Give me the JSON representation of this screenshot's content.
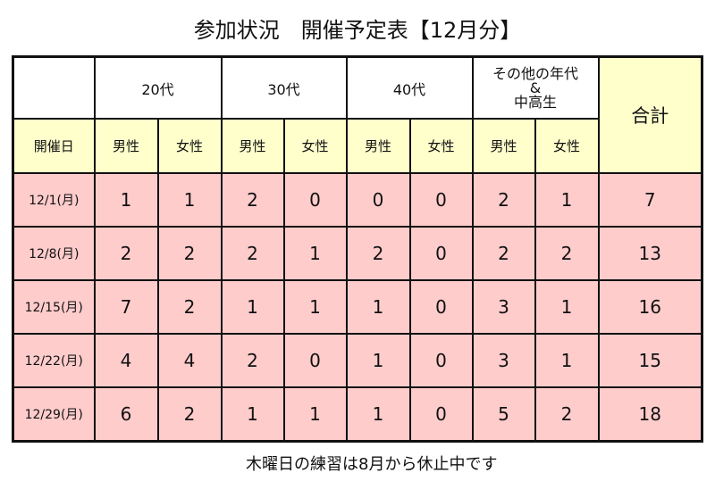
{
  "title": "参加状況　開催予定表【12月分】",
  "header": {
    "groups": [
      "20代",
      "30代",
      "40代"
    ],
    "other_line1": "その他の年代",
    "other_line2": "&",
    "other_line3": "中高生",
    "total": "合計",
    "date_col": "開催日",
    "male": "男性",
    "female": "女性"
  },
  "rows": [
    {
      "date": "12/1(月)",
      "values": [
        "1",
        "1",
        "2",
        "0",
        "0",
        "0",
        "2",
        "1"
      ],
      "total": "7"
    },
    {
      "date": "12/8(月)",
      "values": [
        "2",
        "2",
        "2",
        "1",
        "2",
        "0",
        "2",
        "2"
      ],
      "total": "13"
    },
    {
      "date": "12/15(月)",
      "values": [
        "7",
        "2",
        "1",
        "1",
        "1",
        "0",
        "3",
        "1"
      ],
      "total": "16"
    },
    {
      "date": "12/22(月)",
      "values": [
        "4",
        "4",
        "2",
        "0",
        "1",
        "0",
        "3",
        "1"
      ],
      "total": "15"
    },
    {
      "date": "12/29(月)",
      "values": [
        "6",
        "2",
        "1",
        "1",
        "1",
        "0",
        "5",
        "2"
      ],
      "total": "18"
    }
  ],
  "footer": "木曜日の練習は8月から休止中です",
  "colors": {
    "header_white": "#ffffff",
    "header_yellow": "#ffffcc",
    "data_pink": "#ffcccc"
  }
}
